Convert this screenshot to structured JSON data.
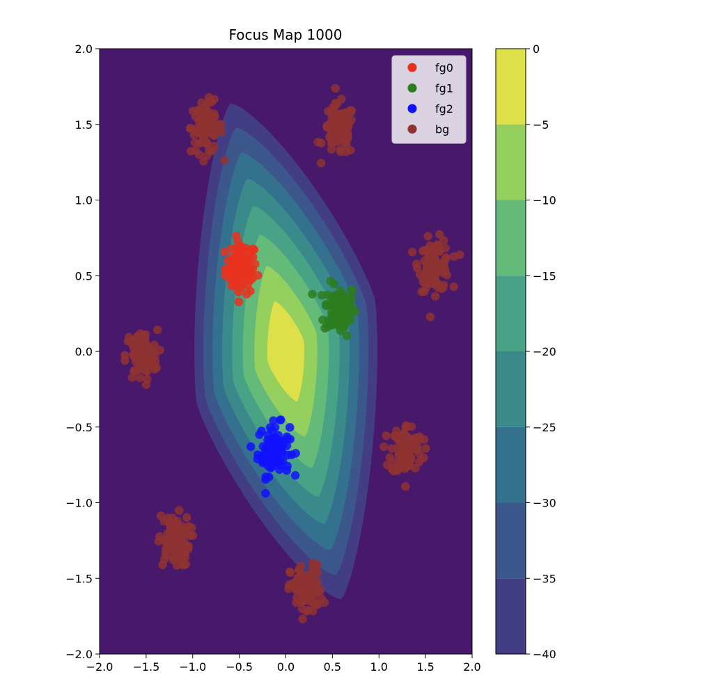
{
  "chart_data": {
    "type": "scatter",
    "title": "Focus Map 1000",
    "xlabel": "",
    "ylabel": "",
    "xlim": [
      -2.0,
      2.0
    ],
    "ylim": [
      -2.0,
      2.0
    ],
    "x_ticks": [
      "−2.0",
      "−1.5",
      "−1.0",
      "−0.5",
      "0.0",
      "0.5",
      "1.0",
      "1.5",
      "2.0"
    ],
    "x_tick_values": [
      -2.0,
      -1.5,
      -1.0,
      -0.5,
      0.0,
      0.5,
      1.0,
      1.5,
      2.0
    ],
    "y_ticks": [
      "2.0",
      "1.5",
      "1.0",
      "0.5",
      "0.0",
      "−0.5",
      "−1.0",
      "−1.5",
      "−2.0"
    ],
    "y_tick_values": [
      2.0,
      1.5,
      1.0,
      0.5,
      0.0,
      -0.5,
      -1.0,
      -1.5,
      -2.0
    ],
    "grid": false,
    "legend_position": "top-right",
    "contour": {
      "kind": "filled-contour",
      "levels": [
        0,
        -5,
        -10,
        -15,
        -20,
        -25,
        -30,
        -35,
        -40
      ],
      "colorbar_ticks": [
        "0",
        "−5",
        "−10",
        "−15",
        "−20",
        "−25",
        "−30",
        "−35",
        "−40"
      ],
      "band_colors": [
        "#dde048",
        "#95d05e",
        "#63ba79",
        "#47a286",
        "#3a8a8c",
        "#34718e",
        "#3b578c",
        "#433d84",
        "#48196b"
      ]
    },
    "series": [
      {
        "name": "fg0",
        "color": "#e8321e",
        "clusters": [
          [
            -0.48,
            0.55
          ]
        ]
      },
      {
        "name": "fg1",
        "color": "#2d7d1e",
        "clusters": [
          [
            0.58,
            0.28
          ]
        ]
      },
      {
        "name": "fg2",
        "color": "#1212ff",
        "clusters": [
          [
            -0.13,
            -0.65
          ]
        ]
      },
      {
        "name": "bg",
        "color": "#8f3232",
        "clusters": [
          [
            -0.85,
            1.48
          ],
          [
            0.57,
            1.46
          ],
          [
            1.6,
            0.57
          ],
          [
            -1.55,
            -0.03
          ],
          [
            1.3,
            -0.65
          ],
          [
            -1.2,
            -1.25
          ],
          [
            0.22,
            -1.58
          ]
        ]
      }
    ]
  }
}
